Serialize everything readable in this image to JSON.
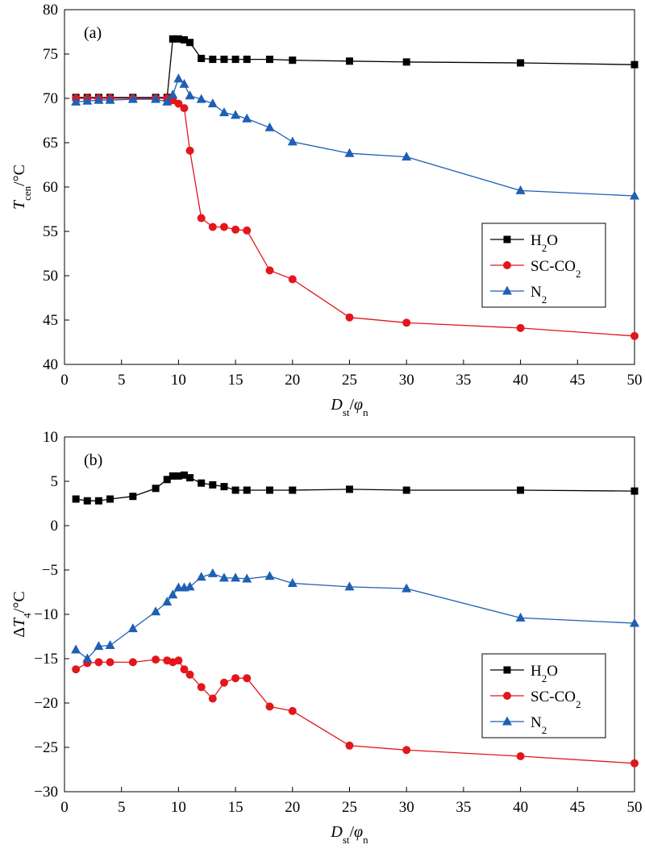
{
  "chart_data": [
    {
      "type": "line",
      "panel_label": "(a)",
      "xlabel": "D_st/φ_n",
      "ylabel": "T_cen/°C",
      "xlim": [
        0,
        50
      ],
      "ylim": [
        40,
        80
      ],
      "x_ticks": [
        0,
        5,
        10,
        15,
        20,
        25,
        30,
        35,
        40,
        45,
        50
      ],
      "y_ticks": [
        40,
        45,
        50,
        55,
        60,
        65,
        70,
        75,
        80
      ],
      "legend_position": "center-right",
      "grid": false,
      "series": [
        {
          "name": "H2O",
          "color": "#000000",
          "marker": "square",
          "x": [
            1,
            2,
            3,
            4,
            6,
            8,
            9,
            9.5,
            10,
            10.5,
            11,
            12,
            13,
            14,
            15,
            16,
            18,
            20,
            25,
            30,
            40,
            50
          ],
          "y": [
            70.1,
            70.1,
            70.1,
            70.1,
            70.1,
            70.1,
            70.1,
            76.7,
            76.7,
            76.6,
            76.3,
            74.5,
            74.4,
            74.4,
            74.4,
            74.4,
            74.4,
            74.3,
            74.2,
            74.1,
            74.0,
            73.8
          ]
        },
        {
          "name": "SC-CO2",
          "color": "#e3161c",
          "marker": "circle",
          "x": [
            1,
            2,
            3,
            4,
            6,
            8,
            9,
            9.5,
            10,
            10.5,
            11,
            12,
            13,
            14,
            15,
            16,
            18,
            20,
            25,
            30,
            40,
            50
          ],
          "y": [
            70.0,
            70.0,
            70.0,
            70.0,
            70.0,
            70.0,
            70.0,
            69.8,
            69.4,
            68.9,
            64.1,
            56.5,
            55.5,
            55.5,
            55.2,
            55.1,
            50.6,
            49.6,
            45.3,
            44.7,
            44.1,
            43.2
          ]
        },
        {
          "name": "N2",
          "color": "#1f5fb4",
          "marker": "triangle",
          "x": [
            1,
            2,
            3,
            4,
            6,
            8,
            9,
            9.5,
            10,
            10.5,
            11,
            12,
            13,
            14,
            15,
            16,
            18,
            20,
            25,
            30,
            40,
            50
          ],
          "y": [
            69.6,
            69.7,
            69.8,
            69.8,
            69.9,
            69.9,
            69.6,
            70.4,
            72.2,
            71.6,
            70.3,
            69.9,
            69.4,
            68.4,
            68.1,
            67.7,
            66.7,
            65.1,
            63.8,
            63.4,
            59.6,
            59.0
          ]
        }
      ]
    },
    {
      "type": "line",
      "panel_label": "(b)",
      "xlabel": "D_st/φ_n",
      "ylabel": "ΔT_4/°C",
      "xlim": [
        0,
        50
      ],
      "ylim": [
        -30,
        10
      ],
      "x_ticks": [
        0,
        5,
        10,
        15,
        20,
        25,
        30,
        35,
        40,
        45,
        50
      ],
      "y_ticks": [
        -30,
        -25,
        -20,
        -15,
        -10,
        -5,
        0,
        5,
        10
      ],
      "legend_position": "lower-right",
      "grid": false,
      "series": [
        {
          "name": "H2O",
          "color": "#000000",
          "marker": "square",
          "x": [
            1,
            2,
            3,
            4,
            6,
            8,
            9,
            9.5,
            10,
            10.5,
            11,
            12,
            13,
            14,
            15,
            16,
            18,
            20,
            25,
            30,
            40,
            50
          ],
          "y": [
            3.0,
            2.8,
            2.8,
            3.0,
            3.3,
            4.2,
            5.2,
            5.6,
            5.6,
            5.7,
            5.4,
            4.8,
            4.6,
            4.4,
            4.0,
            4.0,
            4.0,
            4.0,
            4.1,
            4.0,
            4.0,
            3.9
          ]
        },
        {
          "name": "SC-CO2",
          "color": "#e3161c",
          "marker": "circle",
          "x": [
            1,
            2,
            3,
            4,
            6,
            8,
            9,
            9.5,
            10,
            10.5,
            11,
            12,
            13,
            14,
            15,
            16,
            18,
            20,
            25,
            30,
            40,
            50
          ],
          "y": [
            -16.2,
            -15.5,
            -15.4,
            -15.4,
            -15.4,
            -15.1,
            -15.2,
            -15.4,
            -15.2,
            -16.2,
            -16.8,
            -18.2,
            -19.5,
            -17.7,
            -17.2,
            -17.2,
            -20.4,
            -20.9,
            -24.8,
            -25.3,
            -26.0,
            -26.8
          ]
        },
        {
          "name": "N2",
          "color": "#1f5fb4",
          "marker": "triangle",
          "x": [
            1,
            2,
            3,
            4,
            6,
            8,
            9,
            9.5,
            10,
            10.5,
            11,
            12,
            13,
            14,
            15,
            16,
            18,
            20,
            25,
            30,
            40,
            50
          ],
          "y": [
            -14.0,
            -15.0,
            -13.6,
            -13.5,
            -11.6,
            -9.7,
            -8.6,
            -7.8,
            -7.0,
            -7.0,
            -6.9,
            -5.8,
            -5.4,
            -5.9,
            -5.9,
            -6.0,
            -5.7,
            -6.5,
            -6.9,
            -7.1,
            -10.4,
            -11.0
          ]
        }
      ]
    }
  ]
}
